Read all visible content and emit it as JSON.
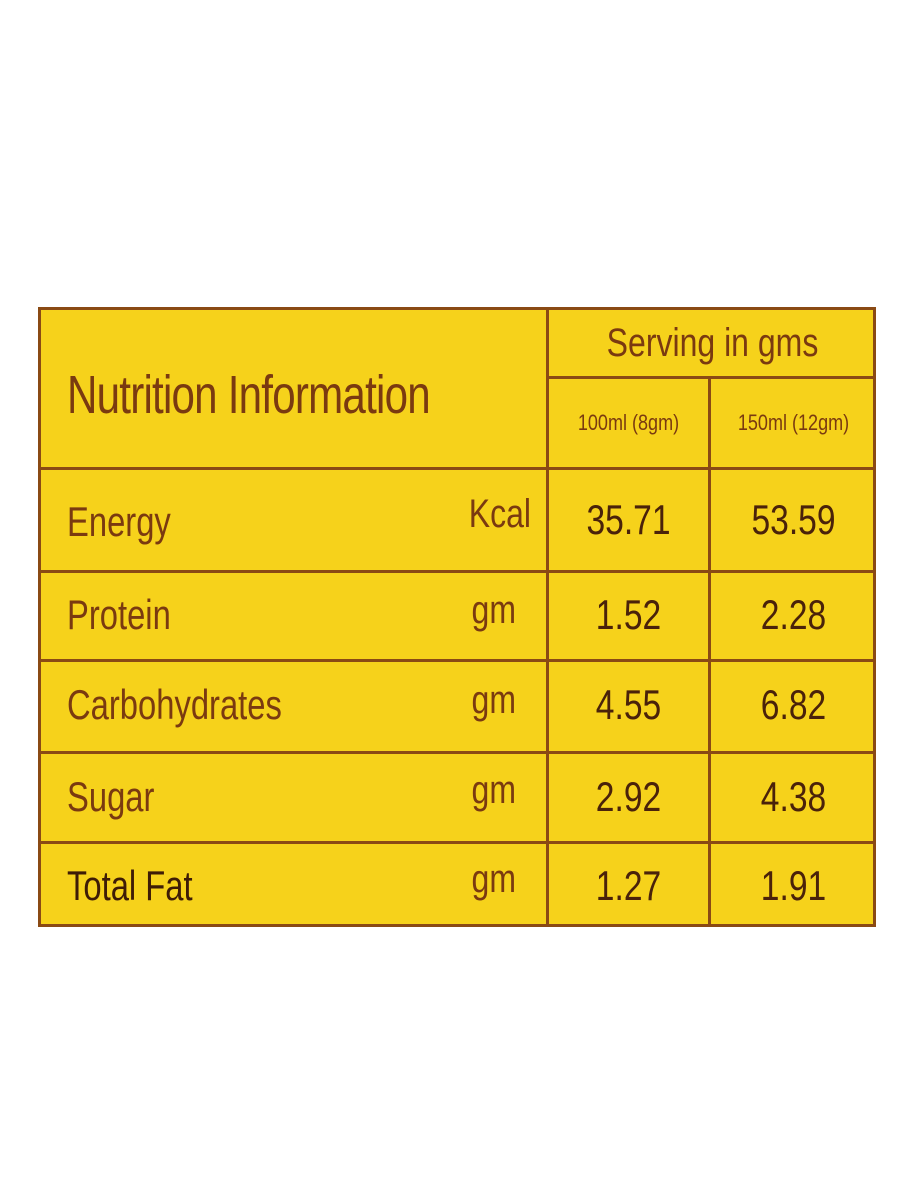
{
  "label": {
    "title": "Nutrition Information",
    "serving_header": "Serving in gms",
    "columns": [
      "100ml (8gm)",
      "150ml (12gm)"
    ],
    "rows": [
      {
        "nutrient": "Energy",
        "unit": "Kcal",
        "values": [
          "35.71",
          "53.59"
        ]
      },
      {
        "nutrient": "Protein",
        "unit": "gm",
        "values": [
          "1.52",
          "2.28"
        ]
      },
      {
        "nutrient": "Carbohydrates",
        "unit": "gm",
        "values": [
          "4.55",
          "6.82"
        ]
      },
      {
        "nutrient": "Sugar",
        "unit": "gm",
        "values": [
          "2.92",
          "4.38"
        ]
      },
      {
        "nutrient": "Total Fat",
        "unit": "gm",
        "values": [
          "1.27",
          "1.91"
        ]
      }
    ],
    "colors": {
      "panel": "#f6d21b",
      "rule": "#8a4a14",
      "text": "#7a3a10"
    }
  }
}
